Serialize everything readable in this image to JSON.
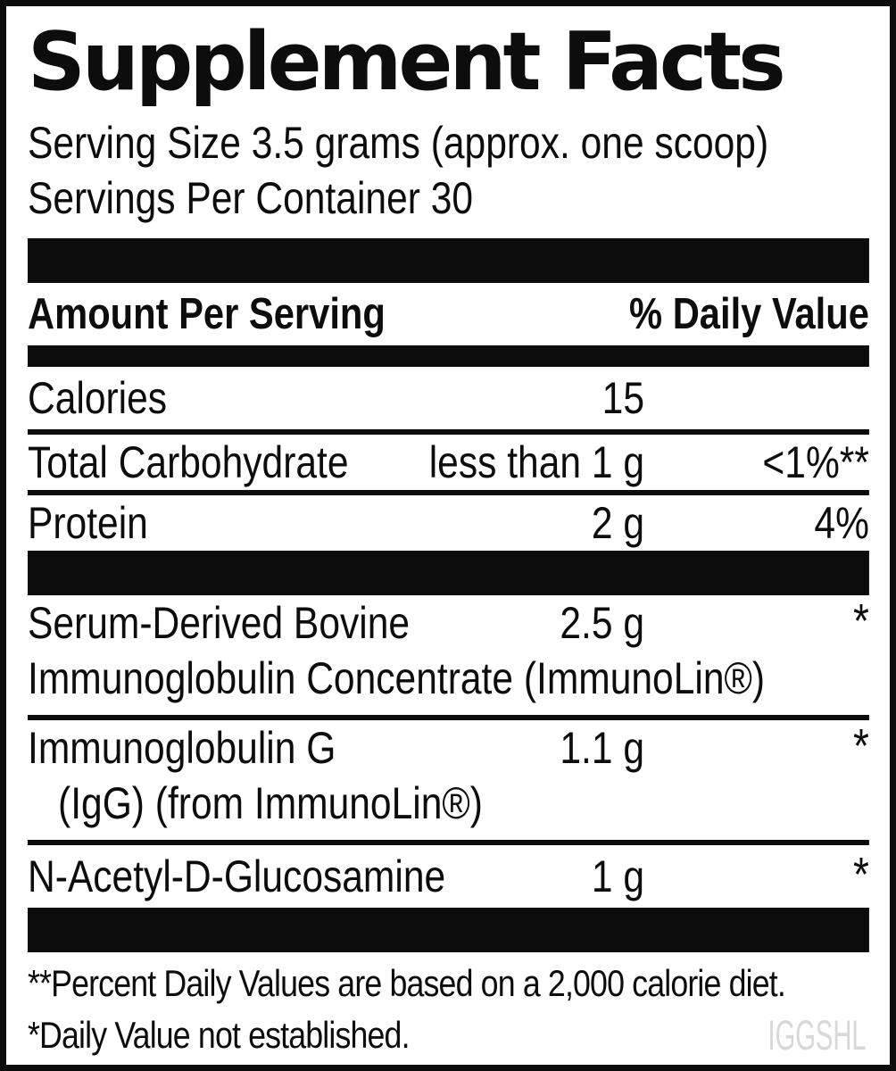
{
  "title": "Supplement Facts",
  "serving": {
    "size_line": "Serving Size 3.5 grams (approx. one scoop)",
    "per_container_line": "Servings Per Container 30"
  },
  "header": {
    "left": "Amount Per Serving",
    "right": "% Daily Value"
  },
  "rows": [
    {
      "name": "Calories",
      "amount": "15",
      "dv": ""
    },
    {
      "name": "Total Carbohydrate",
      "amount": "less than 1 g",
      "dv": "<1%**"
    },
    {
      "name": "Protein",
      "amount": "2 g",
      "dv": "4%"
    },
    {
      "name": "Serum-Derived Bovine",
      "name_line2": "Immunoglobulin Concentrate (ImmunoLin®)",
      "amount": "2.5 g",
      "dv": "*"
    },
    {
      "name": "Immunoglobulin G",
      "name_line2": "(IgG) (from ImmunoLin®)",
      "amount": "1.1 g",
      "dv": "*"
    },
    {
      "name": "N-Acetyl-D-Glucosamine",
      "amount": "1 g",
      "dv": "*"
    }
  ],
  "footnotes": [
    "**Percent Daily Values are based on a 2,000 calorie diet.",
    "*Daily Value not established."
  ],
  "watermark": "IGGSHL",
  "colors": {
    "ink": "#0d0d0d",
    "background": "#ffffff",
    "watermark_gray": "#d8d8d8"
  }
}
